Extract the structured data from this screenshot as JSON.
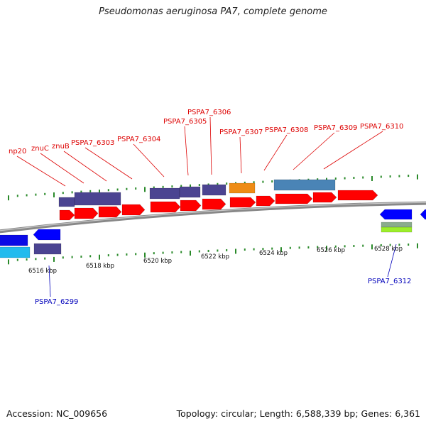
{
  "title": "Pseudomonas aeruginosa PA7, complete genome",
  "footer": {
    "accession": "Accession: NC_009656",
    "summary": "Topology: circular; Length: 6,588,339 bp; Genes: 6,361"
  },
  "colors": {
    "background": "#ffffff",
    "backbone": "#888888",
    "tick": "#2a8a2a",
    "gene_forward": "#ff0000",
    "gene_reverse": "#0000ff",
    "label_top": "#dd0000",
    "label_bottom": "#0000bb"
  },
  "axis": {
    "unit": "kbp",
    "labels": [
      {
        "kbp": 6516,
        "text": "6516 kbp"
      },
      {
        "kbp": 6518,
        "text": "6518 kbp"
      },
      {
        "kbp": 6520,
        "text": "6520 kbp"
      },
      {
        "kbp": 6522,
        "text": "6522 kbp"
      },
      {
        "kbp": 6524,
        "text": "6524 kbp"
      },
      {
        "kbp": 6526,
        "text": "6526 kbp"
      },
      {
        "kbp": 6528,
        "text": "6528 kbp"
      }
    ]
  },
  "gene_labels_top": [
    "np20",
    "znuC",
    "znuB",
    "PSPA7_6303",
    "PSPA7_6304",
    "PSPA7_6305",
    "PSPA7_6306",
    "PSPA7_6307",
    "PSPA7_6308",
    "PSPA7_6309",
    "PSPA7_6310"
  ],
  "gene_labels_bottom": [
    "PSPA7_6299",
    "PSPA7_6312"
  ]
}
